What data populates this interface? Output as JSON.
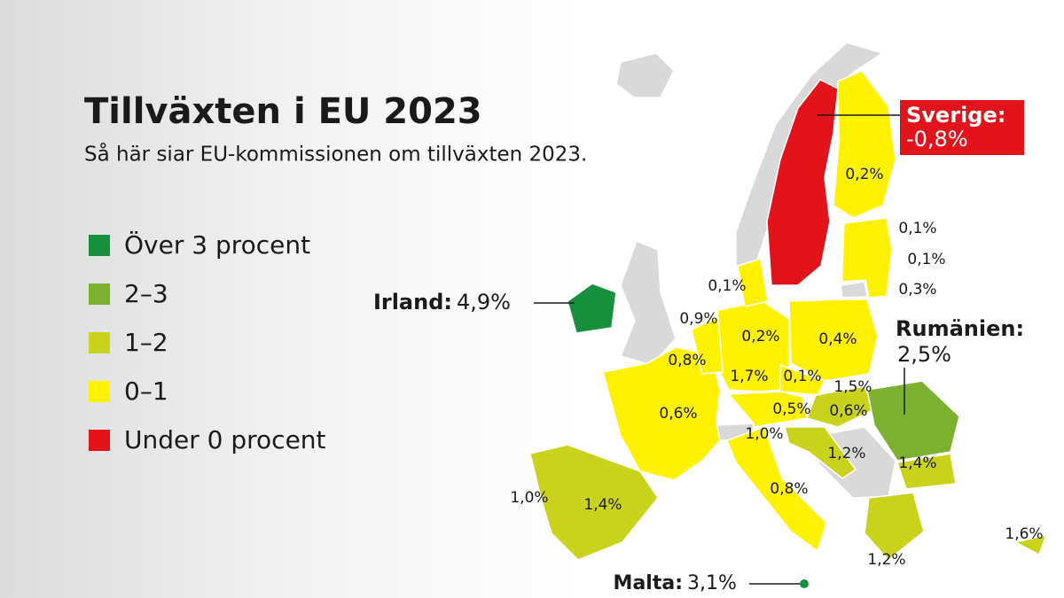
{
  "title": "Tillväxten i EU 2023",
  "subtitle": "Så här siar EU-kommissionen om tillväxten 2023.",
  "legend": [
    {
      "label": "Över 3 procent",
      "color": "#16903c"
    },
    {
      "label": "2–3",
      "color": "#7cb02f"
    },
    {
      "label": "1–2",
      "color": "#c9d31c"
    },
    {
      "label": "0–1",
      "color": "#fff200"
    },
    {
      "label": "Under 0 procent",
      "color": "#e3131b"
    }
  ],
  "callouts": [
    {
      "name": "Sverige:",
      "value": "-0,8%"
    },
    {
      "name": "Irland:",
      "value": "4,9%"
    },
    {
      "name": "Rumänien:",
      "value": "2,5%"
    },
    {
      "name": "Malta:",
      "value": "3,1%"
    }
  ],
  "labels": [
    "0,2%",
    "0,1%",
    "0,1%",
    "0,3%",
    "0,1%",
    "0,9%",
    "0,2%",
    "0,4%",
    "0,8%",
    "1,7%",
    "0,1%",
    "1,5%",
    "0,6%",
    "0,5%",
    "0,6%",
    "1,0%",
    "1,2%",
    "1,4%",
    "1,0%",
    "1,4%",
    "0,8%",
    "1,2%",
    "1,6%"
  ]
}
